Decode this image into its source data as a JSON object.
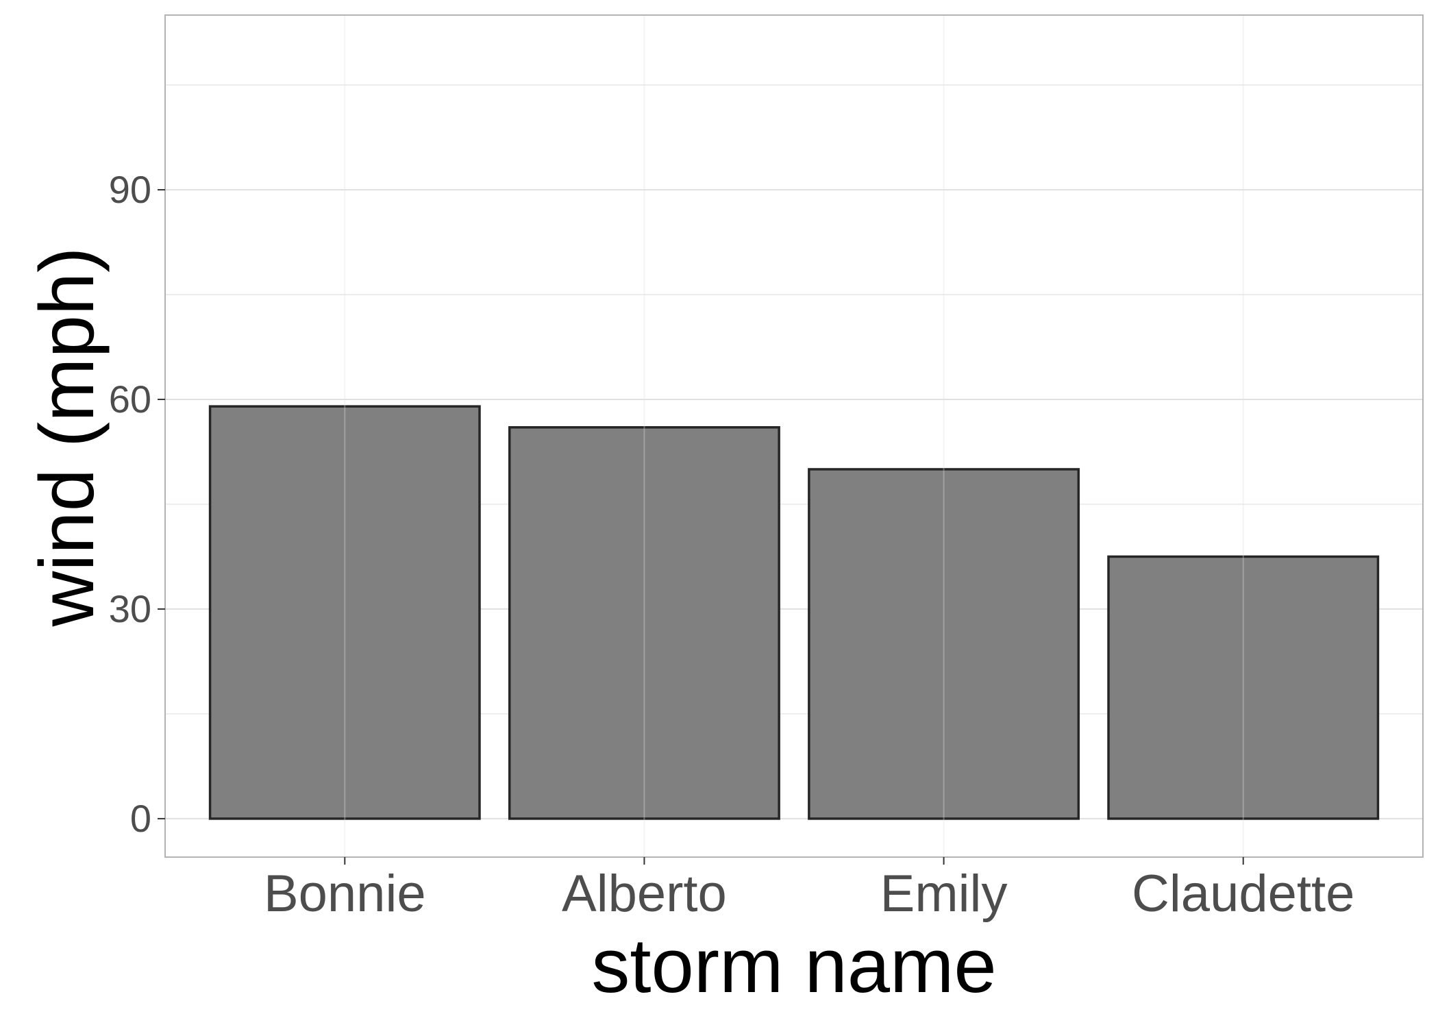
{
  "chart_data": {
    "type": "bar",
    "title": "",
    "xlabel": "storm name",
    "ylabel": "wind (mph)",
    "categories": [
      "Bonnie",
      "Alberto",
      "Emily",
      "Claudette"
    ],
    "values": [
      59,
      56,
      50,
      37.5
    ],
    "ylim": [
      -5.5,
      115
    ],
    "yticks": [
      0,
      30,
      60,
      90
    ],
    "grid": true,
    "legend": "none",
    "colors": {
      "bar_fill": "#808080",
      "bar_stroke": "#262626",
      "grid": "#e0e0e0",
      "panel_border": "#b3b3b3",
      "tick_text": "#4d4d4d",
      "title_text": "#000000"
    }
  }
}
